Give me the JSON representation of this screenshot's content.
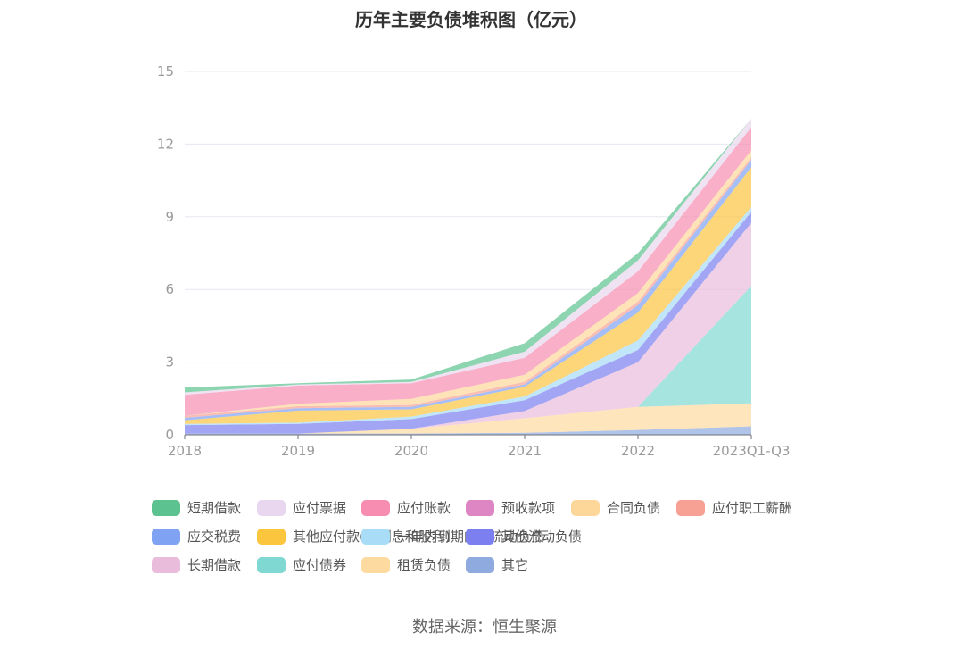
{
  "colors": {
    "短期借款": "#5cc28f",
    "应付票据": "#e8d7ee",
    "应付账款": "#f78db1",
    "预收款项": "#dd86c3",
    "合同负债": "#fdd79a",
    "应付职工薪酬": "#f6a194",
    "应交税费": "#7fa2f3",
    "其他应付款(含利息和股利)": "#fbc53e",
    "一年内到期的非流动负债": "#a8dcf7",
    "其他流动负债": "#7b7ff0",
    "长期借款": "#eabcdb",
    "应付债券": "#80d8d3",
    "租赁负债": "#fddaa0",
    "其它": "#8faadf"
  },
  "chart_data": {
    "type": "area",
    "stacked": true,
    "title": "历年主要负债堆积图（亿元）",
    "categories": [
      "2018",
      "2019",
      "2020",
      "2021",
      "2022",
      "2023Q1-Q3"
    ],
    "ylim": [
      0,
      15
    ],
    "yticks": [
      0,
      3,
      6,
      9,
      12,
      15
    ],
    "series": [
      {
        "name": "其它",
        "values": [
          0.05,
          0.05,
          0.05,
          0.08,
          0.2,
          0.35
        ]
      },
      {
        "name": "租赁负债",
        "values": [
          0,
          0,
          0.2,
          0.6,
          0.95,
          0.95
        ]
      },
      {
        "name": "应付债券",
        "values": [
          0,
          0,
          0,
          0,
          0,
          4.85
        ]
      },
      {
        "name": "长期借款",
        "values": [
          0,
          0,
          0,
          0.3,
          1.85,
          2.6
        ]
      },
      {
        "name": "其他流动负债",
        "values": [
          0.35,
          0.4,
          0.4,
          0.45,
          0.5,
          0.45
        ]
      },
      {
        "name": "一年内到期的非流动负债",
        "values": [
          0.05,
          0.05,
          0.1,
          0.15,
          0.4,
          0.2
        ]
      },
      {
        "name": "其他应付款(含利息和股利)",
        "values": [
          0.15,
          0.5,
          0.3,
          0.4,
          1.15,
          1.65
        ]
      },
      {
        "name": "应交税费",
        "values": [
          0.1,
          0.1,
          0.1,
          0.1,
          0.3,
          0.3
        ]
      },
      {
        "name": "应付职工薪酬",
        "values": [
          0.08,
          0.08,
          0.08,
          0.1,
          0.15,
          0.1
        ]
      },
      {
        "name": "合同负债",
        "values": [
          0,
          0.1,
          0.25,
          0.3,
          0.35,
          0.3
        ]
      },
      {
        "name": "预收款项",
        "values": [
          0.02,
          0,
          0,
          0,
          0,
          0
        ]
      },
      {
        "name": "应付账款",
        "values": [
          0.85,
          0.75,
          0.65,
          0.7,
          0.9,
          0.95
        ]
      },
      {
        "name": "应付票据",
        "values": [
          0.1,
          0.05,
          0.05,
          0.25,
          0.45,
          0.35
        ]
      },
      {
        "name": "短期借款",
        "values": [
          0.2,
          0.05,
          0.1,
          0.35,
          0.3,
          0
        ]
      }
    ]
  },
  "legend": {
    "rows": [
      [
        "短期借款",
        "应付票据",
        "应付账款",
        "预收款项",
        "合同负债",
        "应付职工薪酬"
      ],
      [
        "应交税费",
        "其他应付款(含利息和股利)",
        "一年内到期的非流动负债",
        "其他流动负债"
      ],
      [
        "长期借款",
        "应付债券",
        "租赁负债",
        "其它"
      ]
    ]
  },
  "source": "数据来源：恒生聚源"
}
